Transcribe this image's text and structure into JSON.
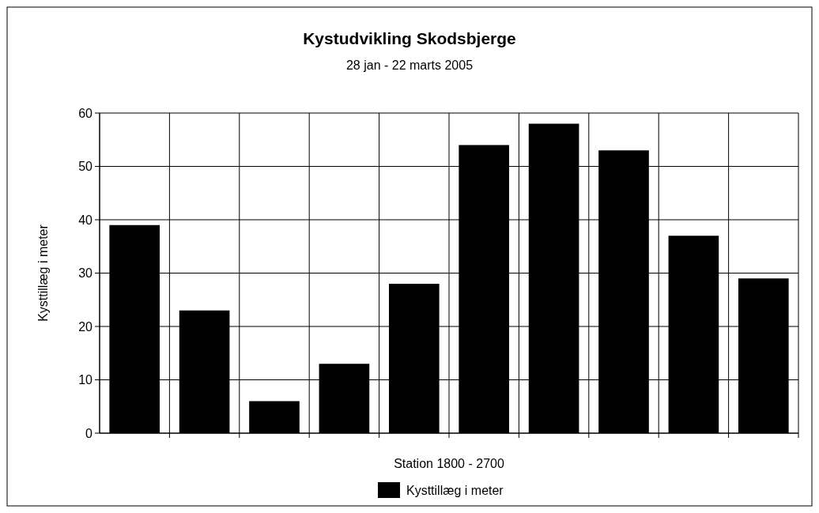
{
  "chart_data": {
    "type": "bar",
    "title": "Kystudvikling Skodsbjerge",
    "subtitle": "28 jan - 22 marts 2005",
    "xlabel": "Station 1800 - 2700",
    "ylabel": "Kysttillæg i meter",
    "categories": [
      null,
      null,
      null,
      null,
      null,
      null,
      null,
      null,
      null,
      null
    ],
    "series": [
      {
        "name": "Kysttillæg i meter",
        "color": "#000000",
        "values": [
          39,
          23,
          6,
          13,
          28,
          54,
          58,
          53,
          37,
          29
        ]
      }
    ],
    "ylim": [
      0,
      60
    ],
    "yticks": [
      0,
      10,
      20,
      30,
      40,
      50,
      60
    ],
    "grid": true,
    "legend": "bottom"
  }
}
